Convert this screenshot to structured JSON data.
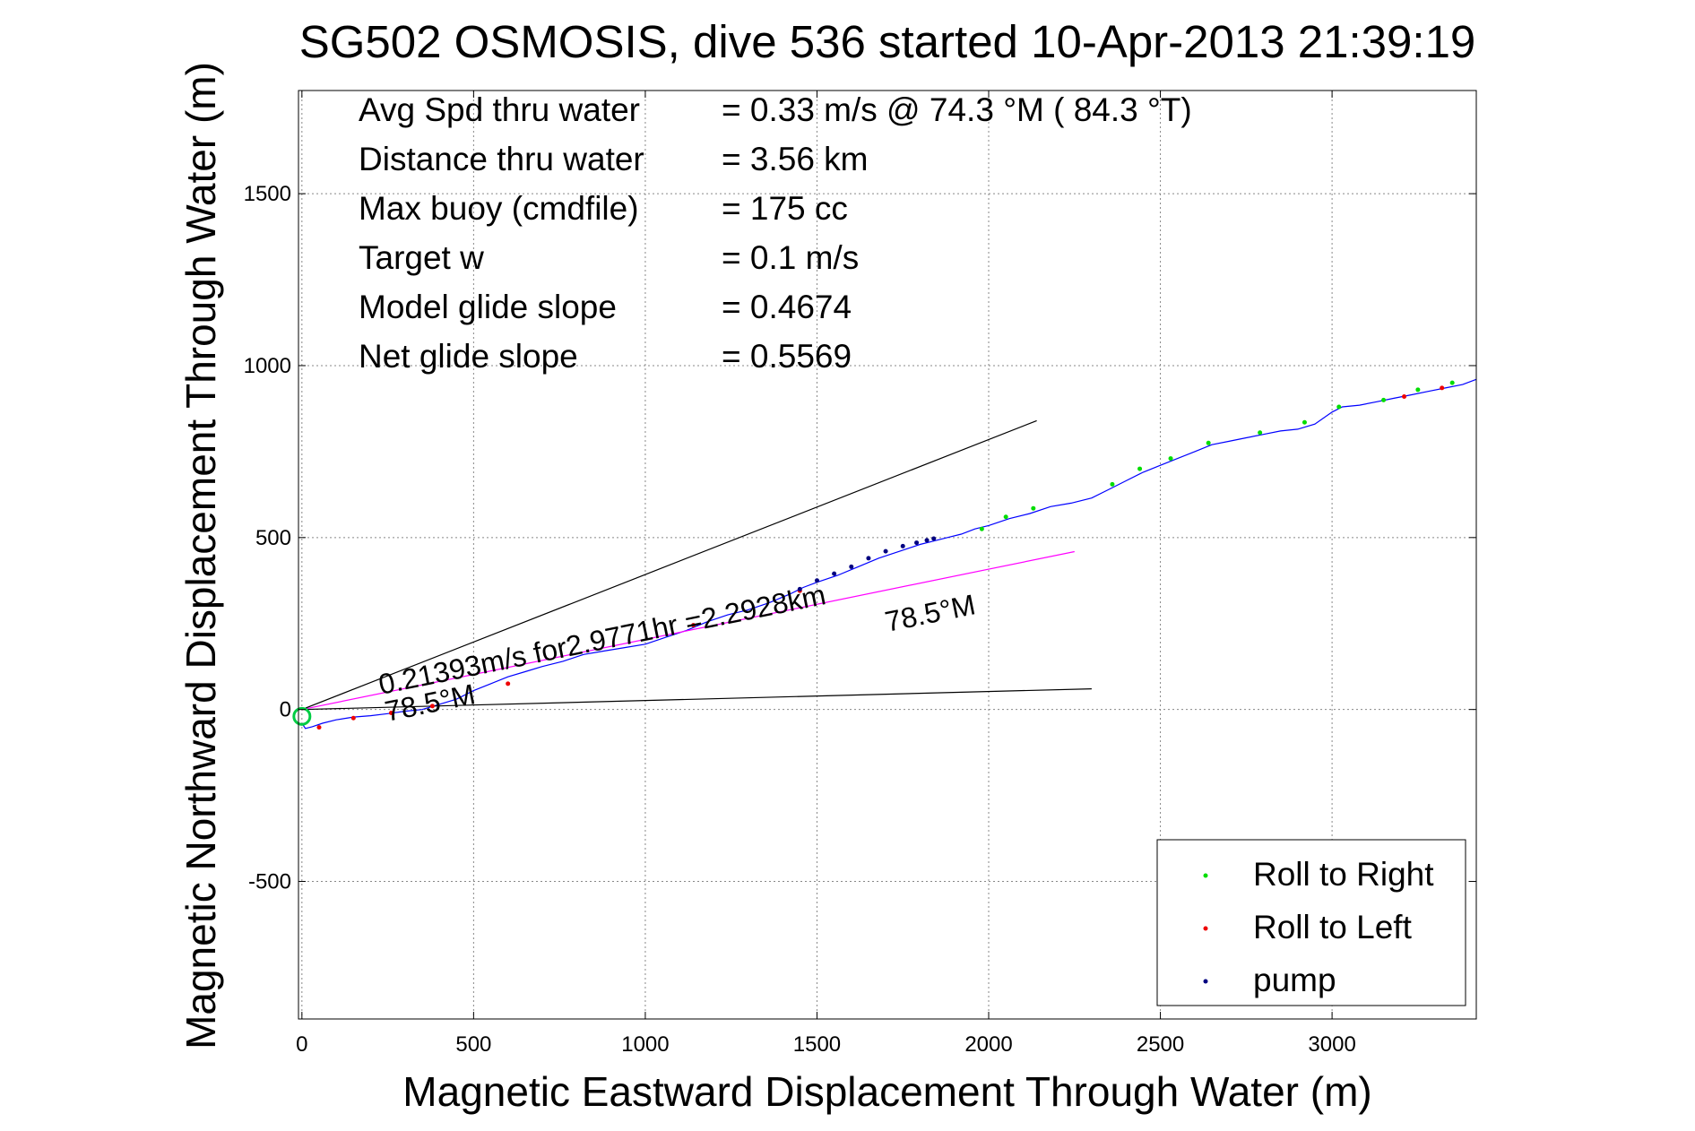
{
  "chart_data": {
    "type": "line",
    "title": "SG502 OSMOSIS, dive 536 started 10-Apr-2013 21:39:19",
    "xlabel": "Magnetic Eastward Displacement Through Water (m)",
    "ylabel": "Magnetic Northward Displacement Through Water (m)",
    "xlim": [
      -10,
      3420
    ],
    "ylim": [
      -900,
      1800
    ],
    "xticks": [
      0,
      500,
      1000,
      1500,
      2000,
      2500,
      3000
    ],
    "yticks": [
      -500,
      0,
      500,
      1000,
      1500
    ],
    "grid": true,
    "legend_position": "bottom-right",
    "stats": [
      {
        "label": "Avg Spd thru water",
        "value": "=  0.33 m/s @  74.3 °M ( 84.3 °T)"
      },
      {
        "label": "Distance thru water",
        "value": "=  3.56 km"
      },
      {
        "label": "Max buoy (cmdfile)",
        "value": "= 175 cc"
      },
      {
        "label": "Target w",
        "value": "= 0.1 m/s"
      },
      {
        "label": "Model glide slope",
        "value": "= 0.4674"
      },
      {
        "label": "Net glide slope",
        "value": "= 0.5569"
      }
    ],
    "legend": [
      {
        "label": "Roll to Right",
        "color": "#00dd00"
      },
      {
        "label": "Roll to Left",
        "color": "#ee0000"
      },
      {
        "label": "pump",
        "color": "#000080"
      }
    ],
    "annotations": {
      "current_text": "0.21393m/s for2.9771hr =2.2928km",
      "heading_near": "78.5°M",
      "heading_far": "78.5°M"
    },
    "series": [
      {
        "name": "track",
        "color": "#0000ff",
        "x": [
          0,
          10,
          30,
          60,
          100,
          150,
          200,
          250,
          300,
          350,
          400,
          450,
          500,
          550,
          600,
          650,
          700,
          760,
          820,
          880,
          940,
          1000,
          1060,
          1120,
          1180,
          1240,
          1300,
          1360,
          1420,
          1460,
          1500,
          1560,
          1620,
          1680,
          1740,
          1800,
          1840,
          1880,
          1920,
          1960,
          2000,
          2060,
          2120,
          2180,
          2240,
          2300,
          2350,
          2400,
          2450,
          2500,
          2550,
          2600,
          2650,
          2700,
          2750,
          2800,
          2850,
          2900,
          2950,
          3000,
          3030,
          3080,
          3130,
          3180,
          3230,
          3280,
          3330,
          3380,
          3420
        ],
        "y": [
          -40,
          -55,
          -50,
          -40,
          -30,
          -22,
          -18,
          -12,
          -5,
          0,
          15,
          30,
          55,
          75,
          95,
          110,
          125,
          140,
          160,
          170,
          180,
          190,
          210,
          230,
          255,
          275,
          290,
          310,
          335,
          355,
          370,
          390,
          415,
          440,
          460,
          480,
          490,
          500,
          510,
          525,
          535,
          555,
          570,
          590,
          600,
          615,
          640,
          665,
          690,
          710,
          730,
          750,
          770,
          780,
          790,
          800,
          810,
          815,
          830,
          865,
          880,
          885,
          895,
          905,
          915,
          925,
          935,
          945,
          960
        ]
      },
      {
        "name": "current bearing",
        "color": "#ff00ff",
        "x": [
          0,
          2250
        ],
        "y": [
          0,
          459
        ]
      },
      {
        "name": "cone upper",
        "color": "#000000",
        "x": [
          0,
          2140
        ],
        "y": [
          0,
          840
        ]
      },
      {
        "name": "cone lower",
        "color": "#000000",
        "x": [
          0,
          2300
        ],
        "y": [
          0,
          60
        ]
      }
    ],
    "markers": {
      "roll_right": {
        "x": [
          1980,
          2050,
          2130,
          2360,
          2440,
          2530,
          2640,
          2790,
          2920,
          3020,
          3150,
          3250,
          3350
        ],
        "y": [
          525,
          560,
          585,
          655,
          700,
          730,
          775,
          805,
          835,
          880,
          900,
          930,
          950
        ]
      },
      "roll_left": {
        "x": [
          50,
          150,
          260,
          380,
          600,
          1140,
          1450,
          3210,
          3320
        ],
        "y": [
          -52,
          -25,
          -10,
          10,
          75,
          245,
          345,
          910,
          935
        ]
      },
      "pump": {
        "x": [
          1450,
          1500,
          1550,
          1600,
          1650,
          1700,
          1750,
          1790,
          1820,
          1840
        ],
        "y": [
          350,
          375,
          395,
          415,
          440,
          460,
          475,
          485,
          492,
          497
        ]
      }
    }
  }
}
